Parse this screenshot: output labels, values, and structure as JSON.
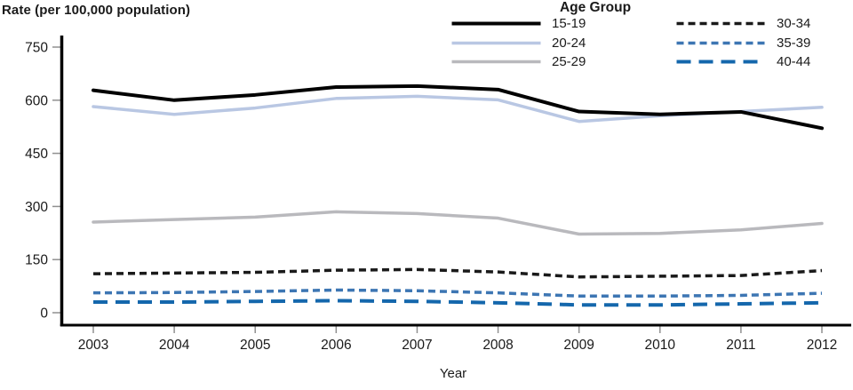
{
  "chart_data": {
    "type": "line",
    "title_y": "Rate (per 100,000 population)",
    "xlabel": "Year",
    "legend_title": "Age Group",
    "x": [
      2003,
      2004,
      2005,
      2006,
      2007,
      2008,
      2009,
      2010,
      2011,
      2012
    ],
    "y_ticks": [
      0,
      150,
      300,
      450,
      600,
      750
    ],
    "ylim": [
      0,
      750
    ],
    "grid": false,
    "legend_position": "top-center-two-columns",
    "axis_color": "#000000",
    "tick_color": "#909090",
    "text_color": "#1a1a1a",
    "series": [
      {
        "name": "15-19",
        "color": "#000000",
        "dash": "solid",
        "width": 4,
        "values": [
          628,
          600,
          615,
          637,
          640,
          630,
          568,
          560,
          567,
          521
        ]
      },
      {
        "name": "20-24",
        "color": "#b9c7e3",
        "dash": "solid",
        "width": 3.5,
        "values": [
          582,
          560,
          578,
          605,
          611,
          601,
          540,
          556,
          568,
          580
        ]
      },
      {
        "name": "25-29",
        "color": "#b9b9bd",
        "dash": "solid",
        "width": 3.5,
        "values": [
          256,
          263,
          270,
          285,
          280,
          267,
          222,
          224,
          234,
          252
        ]
      },
      {
        "name": "30-34",
        "color": "#1a1a1a",
        "dash": "dash",
        "width": 3.5,
        "values": [
          110,
          112,
          114,
          120,
          122,
          115,
          101,
          103,
          105,
          119
        ]
      },
      {
        "name": "35-39",
        "color": "#3d76b3",
        "dash": "dash",
        "width": 3.5,
        "values": [
          56,
          57,
          60,
          64,
          62,
          56,
          47,
          47,
          49,
          55
        ]
      },
      {
        "name": "40-44",
        "color": "#1467ac",
        "dash": "longdash",
        "width": 4,
        "values": [
          30,
          30,
          32,
          34,
          32,
          28,
          22,
          22,
          25,
          28
        ]
      }
    ]
  }
}
